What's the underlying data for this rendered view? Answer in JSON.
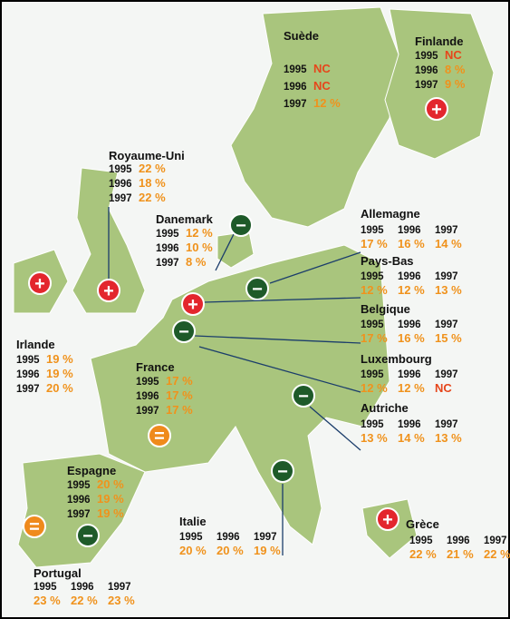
{
  "countries": [
    {
      "name": "Suède",
      "years": [
        "1995",
        "1996",
        "1997"
      ],
      "values": [
        "NC",
        "NC",
        "12 %"
      ]
    },
    {
      "name": "Finlande",
      "years": [
        "1995",
        "1996",
        "1997"
      ],
      "values": [
        "NC",
        "8 %",
        "9 %"
      ],
      "sign": "+"
    },
    {
      "name": "Royaume-Uni",
      "years": [
        "1995",
        "1996",
        "1997"
      ],
      "values": [
        "22 %",
        "18 %",
        "22 %"
      ],
      "sign": "+"
    },
    {
      "name": "Danemark",
      "years": [
        "1995",
        "1996",
        "1997"
      ],
      "values": [
        "12 %",
        "10 %",
        "8 %"
      ],
      "sign": "−"
    },
    {
      "name": "Allemagne",
      "years": [
        "1995",
        "1996",
        "1997"
      ],
      "values": [
        "17 %",
        "16 %",
        "14 %"
      ],
      "sign": "−"
    },
    {
      "name": "Pays-Bas",
      "years": [
        "1995",
        "1996",
        "1997"
      ],
      "values": [
        "12 %",
        "12 %",
        "13 %"
      ],
      "sign": "+"
    },
    {
      "name": "Belgique",
      "years": [
        "1995",
        "1996",
        "1997"
      ],
      "values": [
        "17 %",
        "16 %",
        "15 %"
      ],
      "sign": "−"
    },
    {
      "name": "Luxembourg",
      "years": [
        "1995",
        "1996",
        "1997"
      ],
      "values": [
        "12 %",
        "12 %",
        "NC"
      ]
    },
    {
      "name": "Autriche",
      "years": [
        "1995",
        "1996",
        "1997"
      ],
      "values": [
        "13 %",
        "14 %",
        "13 %"
      ],
      "sign": "−"
    },
    {
      "name": "Irlande",
      "years": [
        "1995",
        "1996",
        "1997"
      ],
      "values": [
        "19 %",
        "19 %",
        "20 %"
      ],
      "sign": "+"
    },
    {
      "name": "France",
      "years": [
        "1995",
        "1996",
        "1997"
      ],
      "values": [
        "17 %",
        "17 %",
        "17 %"
      ],
      "sign": "="
    },
    {
      "name": "Espagne",
      "years": [
        "1995",
        "1996",
        "1997"
      ],
      "values": [
        "20 %",
        "19 %",
        "19 %"
      ],
      "sign": "−"
    },
    {
      "name": "Portugal",
      "years": [
        "1995",
        "1996",
        "1997"
      ],
      "values": [
        "23 %",
        "22 %",
        "23 %"
      ],
      "sign": "="
    },
    {
      "name": "Italie",
      "years": [
        "1995",
        "1996",
        "1997"
      ],
      "values": [
        "20 %",
        "20 %",
        "19 %"
      ],
      "sign": "−"
    },
    {
      "name": "Grèce",
      "years": [
        "1995",
        "1996",
        "1997"
      ],
      "values": [
        "22 %",
        "21 %",
        "22 %"
      ],
      "sign": "+"
    }
  ]
}
